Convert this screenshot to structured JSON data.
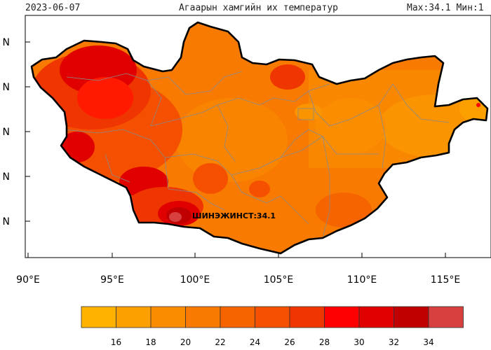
{
  "header": {
    "date": "2023-06-07",
    "title": "Агаарын хамгийн их температур",
    "stats": "Max:34.1 Мин:1"
  },
  "map": {
    "x_axis_labels": [
      "90°E",
      "95°E",
      "100°E",
      "105°E",
      "110°E",
      "115°E"
    ],
    "y_axis_labels": [
      "N",
      "N",
      "N",
      "N",
      "N"
    ],
    "station_label": "ШИНЭЖИНСТ:34.1",
    "max_value": 34.1
  },
  "legend": {
    "colors": [
      "#fdb300",
      "#fca000",
      "#fa8c00",
      "#f87a00",
      "#f66400",
      "#f45000",
      "#f03600",
      "#ff0000",
      "#e00000",
      "#c00000",
      "#d84040"
    ],
    "labels": [
      "16",
      "18",
      "20",
      "22",
      "24",
      "26",
      "28",
      "30",
      "32",
      "34"
    ]
  },
  "colors": {
    "border": "#000000",
    "province_lines": "#8a8a8a",
    "background": "#ffffff"
  }
}
